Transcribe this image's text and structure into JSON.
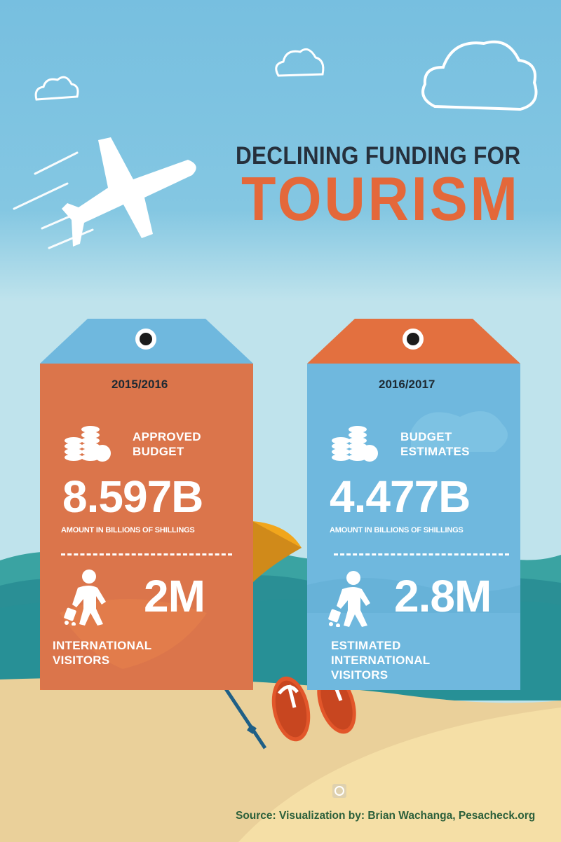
{
  "title": {
    "line1": "DECLINING FUNDING FOR",
    "line2": "TOURISM"
  },
  "colors": {
    "orange": "#e4683a",
    "blue": "#6fb8de",
    "sky": "#77bfe0",
    "sand": "#f4dca0",
    "sea": "#2a8f95"
  },
  "cards": [
    {
      "year": "2015/2016",
      "budget_label": "APPROVED\nBUDGET",
      "amount": "8.597B",
      "amount_note": "AMOUNT IN BILLIONS OF SHILLINGS",
      "visitors": "2M",
      "visitors_label": "INTERNATIONAL VISITORS",
      "icons": [
        "coins-icon",
        "traveler-luggage-icon"
      ]
    },
    {
      "year": "2016/2017",
      "budget_label": "BUDGET\nESTIMATES",
      "amount": "4.477B",
      "amount_note": "AMOUNT IN BILLIONS OF SHILLINGS",
      "visitors": "2.8M",
      "visitors_label": "ESTIMATED\nINTERNATIONAL VISITORS",
      "icons": [
        "coins-icon",
        "traveler-luggage-icon"
      ]
    }
  ],
  "source": "Source: Visualization by: Brian Wachanga, Pesacheck.org"
}
